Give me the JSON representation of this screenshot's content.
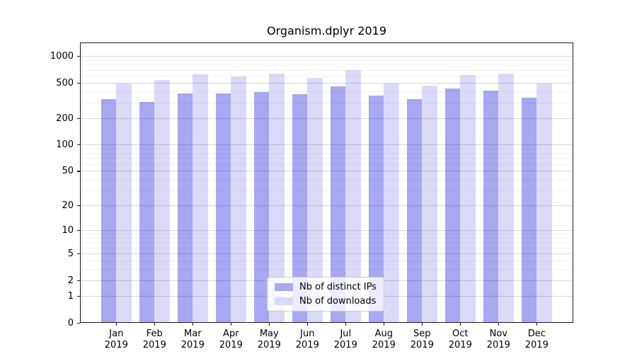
{
  "chart": {
    "title": "Organism.dplyr 2019"
  },
  "legend": {
    "items": [
      {
        "label": "Nb of distinct IPs"
      },
      {
        "label": "Nb of downloads"
      }
    ]
  },
  "colors": {
    "distinct_ips_bar": "#a7a7f2",
    "downloads_bar": "#dadaf8",
    "axis": "#1a1a1a"
  },
  "chart_data": {
    "type": "bar",
    "title": "Organism.dplyr 2019",
    "xlabel": "",
    "ylabel": "",
    "categories": [
      "Jan",
      "Feb",
      "Mar",
      "Apr",
      "May",
      "Jun",
      "Jul",
      "Aug",
      "Sep",
      "Oct",
      "Nov",
      "Dec"
    ],
    "year": "2019",
    "series": [
      {
        "name": "Nb of distinct IPs",
        "color": "#a7a7f2",
        "values": [
          330,
          305,
          380,
          385,
          395,
          375,
          460,
          360,
          330,
          435,
          415,
          340
        ]
      },
      {
        "name": "Nb of downloads",
        "color": "#dadaf8",
        "values": [
          490,
          545,
          630,
          595,
          645,
          570,
          705,
          495,
          465,
          620,
          640,
          495
        ]
      }
    ],
    "y_scale": "log1p",
    "y_ticks": [
      0,
      1,
      2,
      5,
      10,
      20,
      50,
      100,
      200,
      500,
      1000
    ],
    "y_minor_gridlines": [
      3,
      4,
      6,
      7,
      8,
      9,
      30,
      40,
      60,
      70,
      80,
      90,
      300,
      400,
      600,
      700,
      800,
      900
    ],
    "ylim": [
      0,
      1435
    ],
    "grid": "horizontal",
    "legend_position": "lower center"
  }
}
